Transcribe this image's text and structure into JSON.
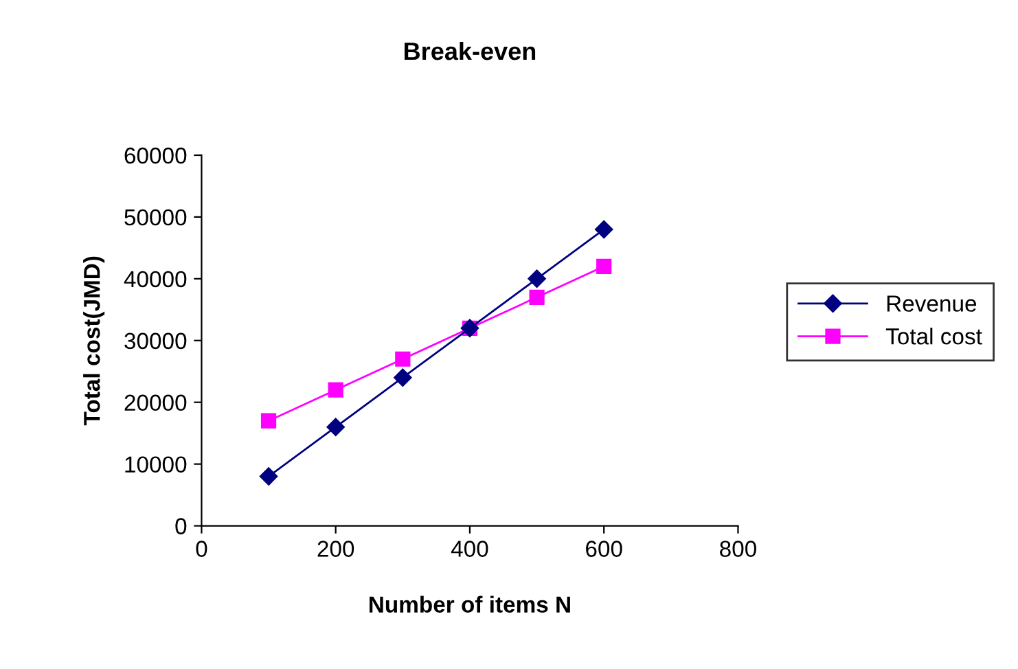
{
  "chart_data": {
    "type": "line",
    "title": "Break-even",
    "xlabel": "Number of items N",
    "ylabel": "Total cost(JMD)",
    "x": [
      100,
      200,
      300,
      400,
      500,
      600
    ],
    "series": [
      {
        "name": "Revenue",
        "color": "#000080",
        "marker": "diamond",
        "values": [
          8000,
          16000,
          24000,
          32000,
          40000,
          48000
        ]
      },
      {
        "name": "Total cost",
        "color": "#ff00ff",
        "marker": "square",
        "values": [
          17000,
          22000,
          27000,
          32000,
          37000,
          42000
        ]
      }
    ],
    "xlim": [
      0,
      800
    ],
    "xticks": [
      0,
      200,
      400,
      600,
      800
    ],
    "ylim": [
      0,
      60000
    ],
    "yticks": [
      0,
      10000,
      20000,
      30000,
      40000,
      50000,
      60000
    ],
    "grid": false,
    "legend": "right",
    "line_style": "solid"
  }
}
